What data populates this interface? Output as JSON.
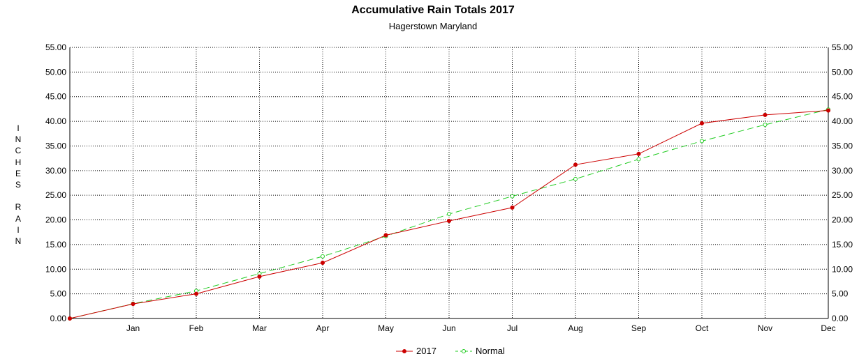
{
  "chart_data": {
    "type": "line",
    "title": "Accumulative Rain Totals 2017",
    "subtitle": "Hagerstown Maryland",
    "ylabel": "INCHES RAIN",
    "xlabel": "",
    "categories": [
      "",
      "Jan",
      "Feb",
      "Mar",
      "Apr",
      "May",
      "Jun",
      "Jul",
      "Aug",
      "Sep",
      "Oct",
      "Nov",
      "Dec"
    ],
    "ylim": [
      0,
      55
    ],
    "yticks": [
      "0.00",
      "5.00",
      "10.00",
      "15.00",
      "20.00",
      "25.00",
      "30.00",
      "35.00",
      "40.00",
      "45.00",
      "50.00",
      "55.00"
    ],
    "grid": true,
    "legend_position": "bottom",
    "series": [
      {
        "name": "2017",
        "color": "#cc0000",
        "line_style": "solid",
        "values": [
          0,
          2.95,
          5.0,
          8.5,
          11.3,
          16.9,
          19.8,
          22.5,
          31.2,
          33.4,
          39.6,
          41.3,
          42.2
        ]
      },
      {
        "name": "Normal",
        "color": "#22cc22",
        "line_style": "dashed",
        "values": [
          0,
          3.0,
          5.6,
          9.1,
          12.6,
          16.7,
          21.2,
          24.8,
          28.3,
          32.3,
          36.0,
          39.3,
          42.4
        ]
      }
    ]
  }
}
